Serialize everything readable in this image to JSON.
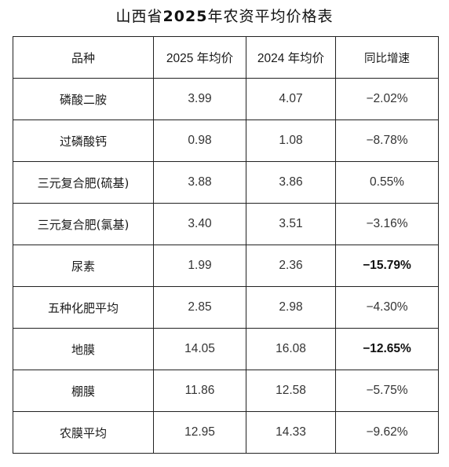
{
  "title": {
    "prefix": "山西省",
    "year": "2025",
    "suffix": "年农资平均价格表"
  },
  "table": {
    "headers": [
      "品种",
      "2025 年均价",
      "2024 年均价",
      "同比增速"
    ],
    "rows": [
      {
        "name": "磷酸二胺",
        "y2025": "3.99",
        "y2024": "4.07",
        "change": "−2.02%",
        "emphasis": false
      },
      {
        "name": "过磷酸钙",
        "y2025": "0.98",
        "y2024": "1.08",
        "change": "−8.78%",
        "emphasis": false
      },
      {
        "name": "三元复合肥(硫基)",
        "y2025": "3.88",
        "y2024": "3.86",
        "change": "0.55%",
        "emphasis": false
      },
      {
        "name": "三元复合肥(氯基)",
        "y2025": "3.40",
        "y2024": "3.51",
        "change": "−3.16%",
        "emphasis": false
      },
      {
        "name": "尿素",
        "y2025": "1.99",
        "y2024": "2.36",
        "change": "−15.79%",
        "emphasis": true
      },
      {
        "name": "五种化肥平均",
        "y2025": "2.85",
        "y2024": "2.98",
        "change": "−4.30%",
        "emphasis": false
      },
      {
        "name": "地膜",
        "y2025": "14.05",
        "y2024": "16.08",
        "change": "−12.65%",
        "emphasis": true
      },
      {
        "name": "棚膜",
        "y2025": "11.86",
        "y2024": "12.58",
        "change": "−5.75%",
        "emphasis": false
      },
      {
        "name": "农膜平均",
        "y2025": "12.95",
        "y2024": "14.33",
        "change": "−9.62%",
        "emphasis": false
      }
    ]
  }
}
